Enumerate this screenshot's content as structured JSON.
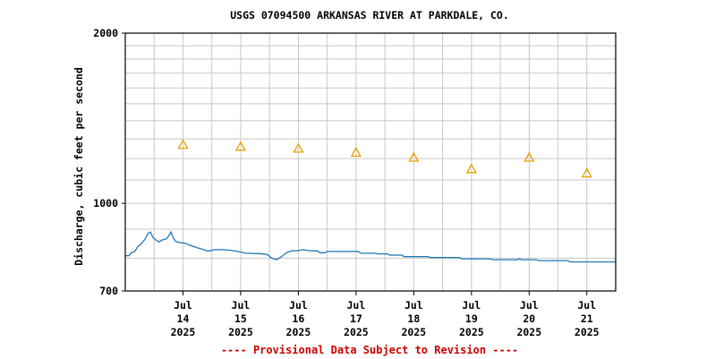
{
  "chart_data": {
    "type": "line",
    "title": "USGS 07094500 ARKANSAS RIVER AT PARKDALE, CO.",
    "ylabel": "Discharge, cubic feet per second",
    "xlabel": "",
    "y_scale": "log",
    "ylim": [
      700,
      2000
    ],
    "y_tick_labels": [
      "2000",
      "1000",
      "700"
    ],
    "x_range_days": [
      "2025-07-13T00:00",
      "2025-07-21T12:00"
    ],
    "x_ticks": [
      {
        "date": "2025-07-14",
        "month": "Jul",
        "day": "14",
        "year": "2025"
      },
      {
        "date": "2025-07-15",
        "month": "Jul",
        "day": "15",
        "year": "2025"
      },
      {
        "date": "2025-07-16",
        "month": "Jul",
        "day": "16",
        "year": "2025"
      },
      {
        "date": "2025-07-17",
        "month": "Jul",
        "day": "17",
        "year": "2025"
      },
      {
        "date": "2025-07-18",
        "month": "Jul",
        "day": "18",
        "year": "2025"
      },
      {
        "date": "2025-07-19",
        "month": "Jul",
        "day": "19",
        "year": "2025"
      },
      {
        "date": "2025-07-20",
        "month": "Jul",
        "day": "20",
        "year": "2025"
      },
      {
        "date": "2025-07-21",
        "month": "Jul",
        "day": "21",
        "year": "2025"
      }
    ],
    "grid": true,
    "line_color": "#1f77b4",
    "marker_color": "#e8a000",
    "series": [
      {
        "name": "",
        "style": "line",
        "points": [
          [
            "2025-07-13T00:00",
            808
          ],
          [
            "2025-07-13T01:30",
            808
          ],
          [
            "2025-07-13T02:30",
            818
          ],
          [
            "2025-07-13T04:00",
            822
          ],
          [
            "2025-07-13T05:00",
            836
          ],
          [
            "2025-07-13T06:30",
            848
          ],
          [
            "2025-07-13T08:00",
            862
          ],
          [
            "2025-07-13T09:30",
            885
          ],
          [
            "2025-07-13T10:30",
            890
          ],
          [
            "2025-07-13T11:30",
            870
          ],
          [
            "2025-07-13T13:00",
            860
          ],
          [
            "2025-07-13T14:00",
            855
          ],
          [
            "2025-07-13T15:30",
            862
          ],
          [
            "2025-07-13T17:00",
            865
          ],
          [
            "2025-07-13T18:00",
            875
          ],
          [
            "2025-07-13T19:00",
            890
          ],
          [
            "2025-07-13T20:00",
            868
          ],
          [
            "2025-07-13T21:00",
            856
          ],
          [
            "2025-07-13T23:00",
            852
          ],
          [
            "2025-07-14T01:00",
            850
          ],
          [
            "2025-07-14T02:00",
            846
          ],
          [
            "2025-07-14T04:00",
            840
          ],
          [
            "2025-07-14T06:00",
            834
          ],
          [
            "2025-07-14T08:00",
            830
          ],
          [
            "2025-07-14T10:00",
            824
          ],
          [
            "2025-07-14T11:00",
            824
          ],
          [
            "2025-07-14T13:00",
            828
          ],
          [
            "2025-07-14T17:00",
            828
          ],
          [
            "2025-07-14T20:00",
            826
          ],
          [
            "2025-07-14T23:00",
            822
          ],
          [
            "2025-07-15T02:00",
            816
          ],
          [
            "2025-07-15T08:00",
            815
          ],
          [
            "2025-07-15T11:00",
            812
          ],
          [
            "2025-07-15T13:00",
            800
          ],
          [
            "2025-07-15T15:00",
            795
          ],
          [
            "2025-07-15T17:00",
            805
          ],
          [
            "2025-07-15T19:00",
            818
          ],
          [
            "2025-07-15T21:00",
            824
          ],
          [
            "2025-07-16T00:00",
            825
          ],
          [
            "2025-07-16T02:00",
            828
          ],
          [
            "2025-07-16T04:00",
            825
          ],
          [
            "2025-07-16T08:00",
            824
          ],
          [
            "2025-07-16T09:00",
            818
          ],
          [
            "2025-07-16T11:00",
            818
          ],
          [
            "2025-07-16T12:00",
            822
          ],
          [
            "2025-07-17T01:00",
            822
          ],
          [
            "2025-07-17T02:00",
            816
          ],
          [
            "2025-07-17T08:00",
            816
          ],
          [
            "2025-07-17T09:00",
            814
          ],
          [
            "2025-07-17T13:00",
            814
          ],
          [
            "2025-07-17T14:00",
            810
          ],
          [
            "2025-07-17T19:00",
            810
          ],
          [
            "2025-07-17T20:00",
            805
          ],
          [
            "2025-07-18T06:00",
            805
          ],
          [
            "2025-07-18T07:00",
            802
          ],
          [
            "2025-07-18T19:00",
            802
          ],
          [
            "2025-07-18T20:00",
            798
          ],
          [
            "2025-07-19T08:00",
            798
          ],
          [
            "2025-07-19T09:00",
            795
          ],
          [
            "2025-07-19T19:00",
            795
          ],
          [
            "2025-07-19T20:00",
            798
          ],
          [
            "2025-07-19T21:00",
            795
          ],
          [
            "2025-07-20T03:00",
            795
          ],
          [
            "2025-07-20T04:00",
            792
          ],
          [
            "2025-07-20T16:00",
            792
          ],
          [
            "2025-07-20T17:00",
            788
          ],
          [
            "2025-07-21T12:00",
            788
          ]
        ]
      },
      {
        "name": "",
        "style": "triangle",
        "points": [
          [
            "2025-07-14T00:00",
            1270
          ],
          [
            "2025-07-15T00:00",
            1260
          ],
          [
            "2025-07-16T00:00",
            1250
          ],
          [
            "2025-07-17T00:00",
            1230
          ],
          [
            "2025-07-18T00:00",
            1205
          ],
          [
            "2025-07-19T00:00",
            1150
          ],
          [
            "2025-07-20T00:00",
            1205
          ],
          [
            "2025-07-21T00:00",
            1130
          ]
        ]
      }
    ]
  },
  "notice": "---- Provisional Data Subject to Revision ----"
}
